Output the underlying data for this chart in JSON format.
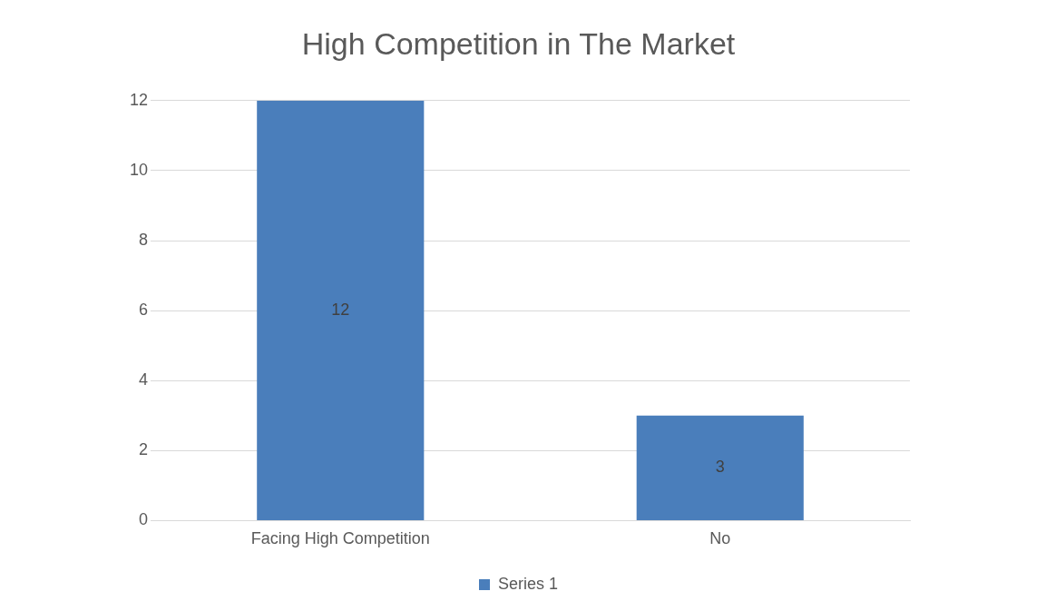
{
  "chart_data": {
    "type": "bar",
    "title": "High Competition in The Market",
    "categories": [
      "Facing High Competition",
      "No"
    ],
    "series": [
      {
        "name": "Series 1",
        "color": "#4a7ebb",
        "values": [
          12,
          3
        ]
      }
    ],
    "ylim": [
      0,
      12
    ],
    "yticks": [
      0,
      2,
      4,
      6,
      8,
      10,
      12
    ],
    "grid": "y",
    "legend": "bottom",
    "data_labels": true
  }
}
